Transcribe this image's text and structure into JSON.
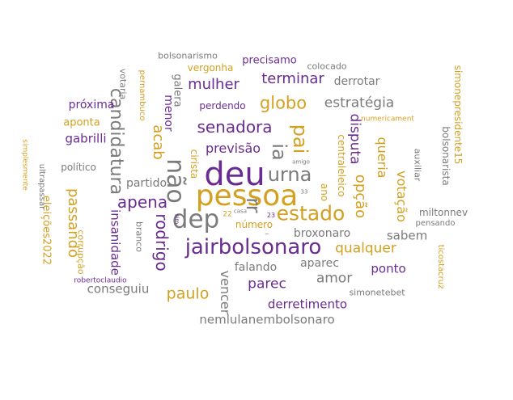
{
  "colors": {
    "gray": "#7b7b7b",
    "purple": "#6a2c91",
    "gold": "#d4a020"
  },
  "words": [
    "deu",
    "pessoa",
    "dep",
    "não",
    "rr",
    "urna",
    "estado",
    "jairbolsonaro",
    "pai",
    "ia",
    "candidatura",
    "apena",
    "rodrigo",
    "passando",
    "insanidade",
    "globo",
    "senadora",
    "mulher",
    "terminar",
    "estratégia",
    "qualquer",
    "opção",
    "disputa",
    "queria",
    "votação",
    "acab",
    "previsão",
    "paulo",
    "parec",
    "amor",
    "vencer",
    "derretimento",
    "nemlulanembolsonaro",
    "conseguiu",
    "falando",
    "aparec",
    "ponto",
    "sabem",
    "broxonaro",
    "número",
    "partido",
    "gabrilli",
    "aponta",
    "próxima",
    "menor",
    "galera",
    "perdendo",
    "vergonha",
    "precisamo",
    "derrotar",
    "colocado",
    "bolsonarismo",
    "votaria",
    "pernambuco",
    "político",
    "corrupção",
    "eleições2022",
    "ultrapassar",
    "simplesmente",
    "robertoclaudio",
    "branco",
    "simonetebet",
    "miltonnev",
    "pensando",
    "auxiliar",
    "bolsonarista",
    "simonepresidente15",
    "ticostacruz",
    "numericament",
    "centraleleico",
    "ano",
    "cirista",
    "amigo",
    "sim",
    "casa",
    "22",
    "23",
    "33",
    "_"
  ]
}
